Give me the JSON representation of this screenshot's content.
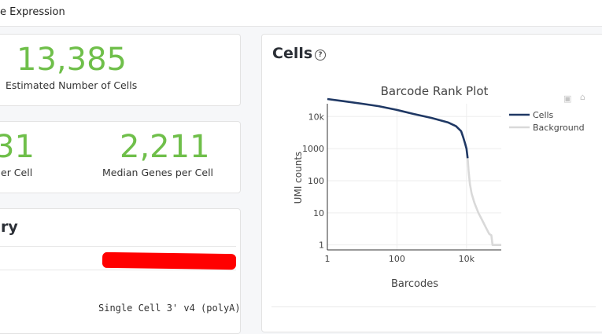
{
  "header": {
    "title": "e Expression"
  },
  "metrics": {
    "cells_value": "13,385",
    "cells_label": "Estimated Number of Cells",
    "reads_value": "31",
    "reads_label": "er Cell",
    "genes_value": "2,211",
    "genes_label": "Median Genes per Cell"
  },
  "summary": {
    "title": "ry",
    "chemistry": "Single Cell 3' v4 (polyA)"
  },
  "cells_panel": {
    "title": "Cells",
    "help_icon": "question-circle-icon"
  },
  "toolbar": {
    "camera_icon": "camera-icon",
    "home_icon": "home-icon"
  },
  "chart_data": {
    "type": "line",
    "title": "Barcode Rank Plot",
    "xlabel": "Barcodes",
    "ylabel": "UMI counts",
    "x_scale": "log",
    "y_scale": "log",
    "x_ticks": [
      "1",
      "100",
      "10k"
    ],
    "y_ticks": [
      "1",
      "10",
      "100",
      "1000",
      "10k"
    ],
    "xlim": [
      1,
      100000
    ],
    "ylim": [
      0.7,
      25000
    ],
    "legend_position": "right",
    "series": [
      {
        "name": "Cells",
        "color": "#1f3864",
        "points": [
          [
            1,
            35000
          ],
          [
            3,
            30000
          ],
          [
            10,
            25000
          ],
          [
            30,
            21000
          ],
          [
            100,
            16000
          ],
          [
            300,
            12000
          ],
          [
            1000,
            9000
          ],
          [
            3000,
            6500
          ],
          [
            5000,
            5000
          ],
          [
            7000,
            3500
          ],
          [
            8000,
            2300
          ],
          [
            9000,
            1500
          ],
          [
            10000,
            1000
          ],
          [
            10800,
            500
          ]
        ]
      },
      {
        "name": "Background",
        "color": "#d9d9d9",
        "points": [
          [
            10800,
            500
          ],
          [
            11500,
            200
          ],
          [
            12500,
            80
          ],
          [
            14000,
            40
          ],
          [
            17000,
            20
          ],
          [
            22000,
            10
          ],
          [
            28000,
            6
          ],
          [
            36000,
            3.5
          ],
          [
            45000,
            2.2
          ],
          [
            52000,
            2
          ],
          [
            56000,
            1
          ],
          [
            100000,
            1
          ]
        ]
      }
    ]
  }
}
